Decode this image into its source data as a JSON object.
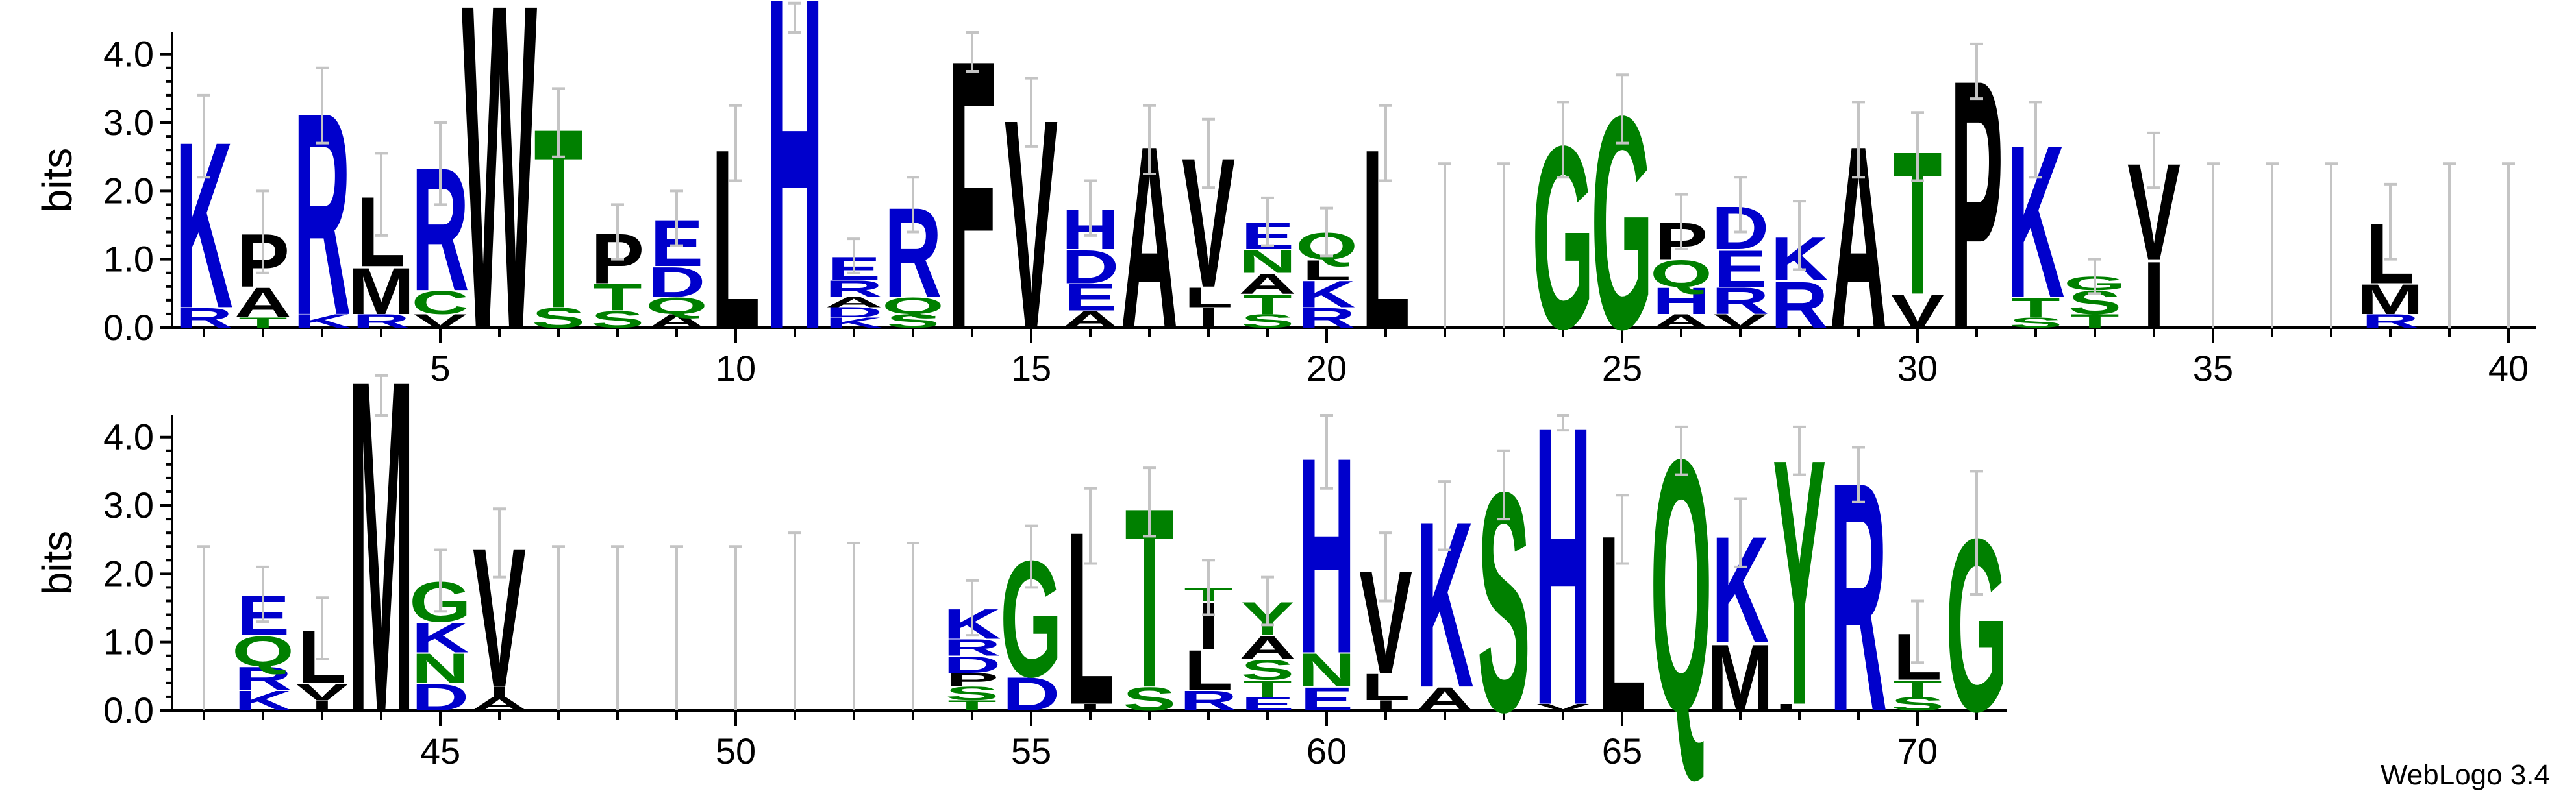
{
  "colors": {
    "hydrophobic": "#000000",
    "polar": "#008000",
    "charged": "#0000cc",
    "errorbar": "#c4c4c4"
  },
  "credit": "WebLogo 3.4",
  "chart_data": [
    {
      "type": "sequence-logo",
      "ylabel": "bits",
      "ylim": [
        0,
        4.32
      ],
      "yticks": [
        "0.0",
        "1.0",
        "2.0",
        "3.0",
        "4.0"
      ],
      "xrange": [
        1,
        40
      ],
      "xticks": [
        5,
        10,
        15,
        20,
        25,
        30,
        35,
        40
      ],
      "positions": [
        {
          "pos": 1,
          "stack": [
            [
              "R",
              0.3
            ],
            [
              "K",
              2.5
            ]
          ],
          "err": 0.6
        },
        {
          "pos": 2,
          "stack": [
            [
              "T",
              0.15
            ],
            [
              "A",
              0.45
            ],
            [
              "P",
              0.8
            ]
          ],
          "err": 0.6
        },
        {
          "pos": 3,
          "stack": [
            [
              "K",
              0.2
            ],
            [
              "R",
              3.05
            ]
          ],
          "err": 0.55
        },
        {
          "pos": 4,
          "stack": [
            [
              "R",
              0.2
            ],
            [
              "M",
              0.7
            ],
            [
              "L",
              1.05
            ]
          ],
          "err": 0.6
        },
        {
          "pos": 5,
          "stack": [
            [
              "V",
              0.2
            ],
            [
              "C",
              0.35
            ],
            [
              "R",
              1.85
            ]
          ],
          "err": 0.6
        },
        {
          "pos": 6,
          "stack": [
            [
              "W",
              4.9
            ]
          ],
          "err": 0.0
        },
        {
          "pos": 7,
          "stack": [
            [
              "S",
              0.3
            ],
            [
              "T",
              2.7
            ]
          ],
          "err": 0.5
        },
        {
          "pos": 8,
          "stack": [
            [
              "S",
              0.25
            ],
            [
              "T",
              0.4
            ],
            [
              "P",
              0.75
            ]
          ],
          "err": 0.4
        },
        {
          "pos": 9,
          "stack": [
            [
              "A",
              0.2
            ],
            [
              "Q",
              0.25
            ],
            [
              "D",
              0.45
            ],
            [
              "E",
              0.7
            ]
          ],
          "err": 0.4
        },
        {
          "pos": 10,
          "stack": [
            [
              "L",
              2.7
            ]
          ],
          "err": 0.55
        },
        {
          "pos": 11,
          "stack": [
            [
              "H",
              5.0
            ]
          ],
          "err": 0.25
        },
        {
          "pos": 12,
          "stack": [
            [
              "K",
              0.15
            ],
            [
              "D",
              0.15
            ],
            [
              "A",
              0.15
            ],
            [
              "R",
              0.25
            ],
            [
              "E",
              0.35
            ]
          ],
          "err": 0.25
        },
        {
          "pos": 13,
          "stack": [
            [
              "S",
              0.2
            ],
            [
              "Q",
              0.25
            ],
            [
              "R",
              1.35
            ]
          ],
          "err": 0.4
        },
        {
          "pos": 14,
          "stack": [
            [
              "F",
              4.05
            ]
          ],
          "err": 0.3
        },
        {
          "pos": 15,
          "stack": [
            [
              "V",
              3.15
            ]
          ],
          "err": 0.5
        },
        {
          "pos": 16,
          "stack": [
            [
              "A",
              0.25
            ],
            [
              "E",
              0.4
            ],
            [
              "D",
              0.5
            ],
            [
              "H",
              0.6
            ]
          ],
          "err": 0.4
        },
        {
          "pos": 17,
          "stack": [
            [
              "A",
              2.75
            ]
          ],
          "err": 0.5
        },
        {
          "pos": 18,
          "stack": [
            [
              "I",
              0.3
            ],
            [
              "L",
              0.3
            ],
            [
              "V",
              1.95
            ]
          ],
          "err": 0.5
        },
        {
          "pos": 19,
          "stack": [
            [
              "S",
              0.2
            ],
            [
              "T",
              0.3
            ],
            [
              "A",
              0.3
            ],
            [
              "N",
              0.35
            ],
            [
              "E",
              0.4
            ]
          ],
          "err": 0.35
        },
        {
          "pos": 20,
          "stack": [
            [
              "R",
              0.3
            ],
            [
              "K",
              0.4
            ],
            [
              "L",
              0.3
            ],
            [
              "Q",
              0.4
            ]
          ],
          "err": 0.35
        },
        {
          "pos": 21,
          "stack": [
            [
              "L",
              2.7
            ]
          ],
          "err": 0.55
        },
        {
          "pos": 22,
          "stack": [],
          "err": 2.4
        },
        {
          "pos": 23,
          "stack": [],
          "err": 2.4
        },
        {
          "pos": 24,
          "stack": [
            [
              "G",
              2.75
            ]
          ],
          "err": 0.55
        },
        {
          "pos": 25,
          "stack": [
            [
              "G",
              3.2
            ]
          ],
          "err": 0.5
        },
        {
          "pos": 26,
          "stack": [
            [
              "A",
              0.2
            ],
            [
              "H",
              0.4
            ],
            [
              "Q",
              0.4
            ],
            [
              "P",
              0.55
            ]
          ],
          "err": 0.4
        },
        {
          "pos": 27,
          "stack": [
            [
              "V",
              0.2
            ],
            [
              "R",
              0.4
            ],
            [
              "E",
              0.55
            ],
            [
              "D",
              0.65
            ]
          ],
          "err": 0.4
        },
        {
          "pos": 28,
          "stack": [
            [
              "R",
              0.7
            ],
            [
              "K",
              0.65
            ]
          ],
          "err": 0.5
        },
        {
          "pos": 29,
          "stack": [
            [
              "A",
              2.75
            ]
          ],
          "err": 0.55
        },
        {
          "pos": 30,
          "stack": [
            [
              "V",
              0.5
            ],
            [
              "T",
              2.15
            ]
          ],
          "err": 0.5
        },
        {
          "pos": 31,
          "stack": [
            [
              "P",
              3.75
            ]
          ],
          "err": 0.4
        },
        {
          "pos": 32,
          "stack": [
            [
              "S",
              0.15
            ],
            [
              "T",
              0.3
            ],
            [
              "K",
              2.3
            ]
          ],
          "err": 0.55
        },
        {
          "pos": 33,
          "stack": [
            [
              "T",
              0.2
            ],
            [
              "S",
              0.35
            ],
            [
              "G",
              0.2
            ]
          ],
          "err": 0.25
        },
        {
          "pos": 34,
          "stack": [
            [
              "I",
              1.0
            ],
            [
              "V",
              1.45
            ]
          ],
          "err": 0.4
        },
        {
          "pos": 35,
          "stack": [],
          "err": 2.4
        },
        {
          "pos": 36,
          "stack": [],
          "err": 2.4
        },
        {
          "pos": 37,
          "stack": [],
          "err": 2.4
        },
        {
          "pos": 38,
          "stack": [
            [
              "R",
              0.2
            ],
            [
              "M",
              0.45
            ],
            [
              "L",
              0.9
            ]
          ],
          "err": 0.55
        },
        {
          "pos": 39,
          "stack": [],
          "err": 2.4
        },
        {
          "pos": 40,
          "stack": [],
          "err": 2.4
        }
      ]
    },
    {
      "type": "sequence-logo",
      "ylabel": "bits",
      "ylim": [
        0,
        4.32
      ],
      "yticks": [
        "0.0",
        "1.0",
        "2.0",
        "3.0",
        "4.0"
      ],
      "xrange": [
        41,
        80
      ],
      "xticks": [
        45,
        50,
        55,
        60,
        65,
        70
      ],
      "positions": [
        {
          "pos": 41,
          "stack": [],
          "err": 2.4
        },
        {
          "pos": 42,
          "stack": [
            [
              "K",
              0.3
            ],
            [
              "R",
              0.35
            ],
            [
              "Q",
              0.45
            ],
            [
              "E",
              0.6
            ]
          ],
          "err": 0.4
        },
        {
          "pos": 43,
          "stack": [
            [
              "I",
              0.15
            ],
            [
              "V",
              0.25
            ],
            [
              "L",
              0.8
            ]
          ],
          "err": 0.45
        },
        {
          "pos": 44,
          "stack": [
            [
              "M",
              5.0
            ]
          ],
          "err": 0.1
        },
        {
          "pos": 45,
          "stack": [
            [
              "D",
              0.4
            ],
            [
              "N",
              0.45
            ],
            [
              "K",
              0.45
            ],
            [
              "G",
              0.6
            ]
          ],
          "err": 0.45
        },
        {
          "pos": 46,
          "stack": [
            [
              "A",
              0.2
            ],
            [
              "I",
              0.15
            ],
            [
              "V",
              2.1
            ]
          ],
          "err": 0.5
        },
        {
          "pos": 47,
          "stack": [],
          "err": 2.4
        },
        {
          "pos": 48,
          "stack": [],
          "err": 2.4
        },
        {
          "pos": 49,
          "stack": [],
          "err": 2.4
        },
        {
          "pos": 50,
          "stack": [],
          "err": 2.4
        },
        {
          "pos": 51,
          "stack": [],
          "err": 2.6
        },
        {
          "pos": 52,
          "stack": [],
          "err": 2.45
        },
        {
          "pos": 53,
          "stack": [],
          "err": 2.45
        },
        {
          "pos": 54,
          "stack": [
            [
              "T",
              0.15
            ],
            [
              "S",
              0.2
            ],
            [
              "P",
              0.2
            ],
            [
              "D",
              0.25
            ],
            [
              "R",
              0.25
            ],
            [
              "K",
              0.45
            ]
          ],
          "err": 0.4
        },
        {
          "pos": 55,
          "stack": [
            [
              "D",
              0.5
            ],
            [
              "G",
              1.75
            ]
          ],
          "err": 0.45
        },
        {
          "pos": 56,
          "stack": [
            [
              "I",
              0.1
            ],
            [
              "L",
              2.6
            ]
          ],
          "err": 0.55
        },
        {
          "pos": 57,
          "stack": [
            [
              "S",
              0.35
            ],
            [
              "T",
              2.7
            ]
          ],
          "err": 0.5
        },
        {
          "pos": 58,
          "stack": [
            [
              "R",
              0.3
            ],
            [
              "L",
              0.6
            ],
            [
              "I",
              0.7
            ],
            [
              "T",
              0.2
            ]
          ],
          "err": 0.4
        },
        {
          "pos": 59,
          "stack": [
            [
              "E",
              0.2
            ],
            [
              "T",
              0.25
            ],
            [
              "S",
              0.3
            ],
            [
              "A",
              0.35
            ],
            [
              "Y",
              0.5
            ]
          ],
          "err": 0.35
        },
        {
          "pos": 60,
          "stack": [
            [
              "E",
              0.35
            ],
            [
              "N",
              0.5
            ],
            [
              "H",
              2.95
            ]
          ],
          "err": 0.55
        },
        {
          "pos": 61,
          "stack": [
            [
              "I",
              0.15
            ],
            [
              "L",
              0.4
            ],
            [
              "V",
              1.55
            ]
          ],
          "err": 0.5
        },
        {
          "pos": 62,
          "stack": [
            [
              "A",
              0.35
            ],
            [
              "K",
              2.5
            ]
          ],
          "err": 0.5
        },
        {
          "pos": 63,
          "stack": [
            [
              "S",
              3.3
            ]
          ],
          "err": 0.5
        },
        {
          "pos": 64,
          "stack": [
            [
              "V",
              0.1
            ],
            [
              "H",
              4.2
            ]
          ],
          "err": 0.2
        },
        {
          "pos": 65,
          "stack": [
            [
              "L",
              2.65
            ]
          ],
          "err": 0.5
        },
        {
          "pos": 66,
          "stack": [
            [
              "Q",
              3.8
            ]
          ],
          "err": 0.35
        },
        {
          "pos": 67,
          "stack": [
            [
              "M",
              1.0
            ],
            [
              "K",
              1.6
            ]
          ],
          "err": 0.5
        },
        {
          "pos": 68,
          "stack": [
            [
              "L",
              0.1
            ],
            [
              "Y",
              3.7
            ]
          ],
          "err": 0.35
        },
        {
          "pos": 69,
          "stack": [
            [
              "R",
              3.45
            ]
          ],
          "err": 0.4
        },
        {
          "pos": 70,
          "stack": [
            [
              "S",
              0.2
            ],
            [
              "T",
              0.25
            ],
            [
              "L",
              0.7
            ]
          ],
          "err": 0.45
        },
        {
          "pos": 71,
          "stack": [
            [
              "G",
              2.6
            ]
          ],
          "err": 0.9
        }
      ]
    }
  ]
}
